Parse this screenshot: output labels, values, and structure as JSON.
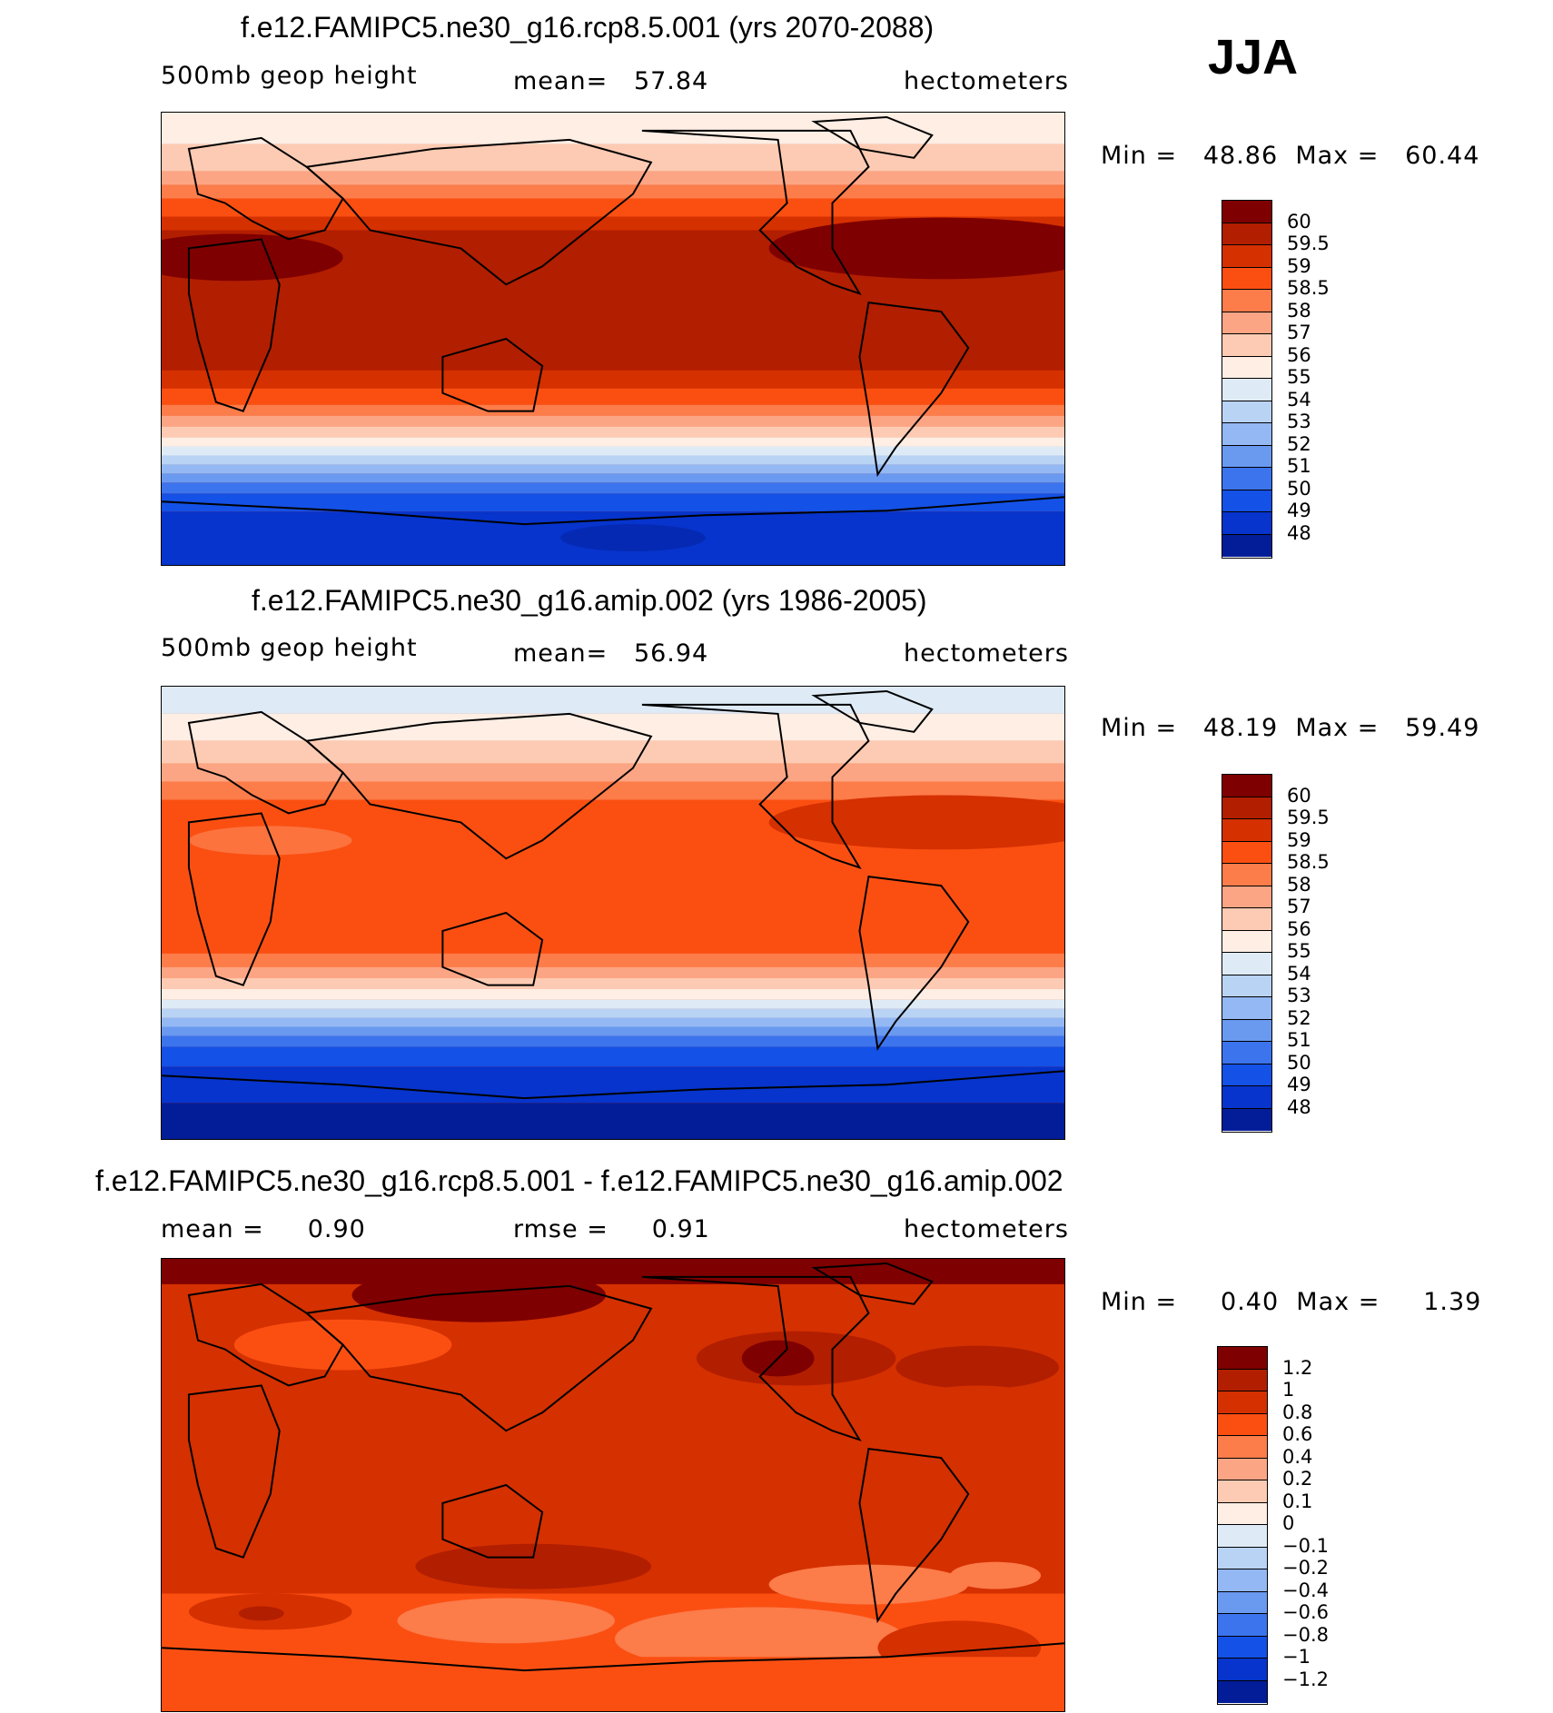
{
  "season": "JJA",
  "panels": [
    {
      "title": "f.e12.FAMIPC5.ne30_g16.rcp8.5.001 (yrs 2070-2088)",
      "left_label": "500mb geop height",
      "center_label": "mean=   57.84",
      "right_label": "hectometers",
      "minmax": "Min =   48.86  Max =   60.44"
    },
    {
      "title": "f.e12.FAMIPC5.ne30_g16.amip.002 (yrs 1986-2005)",
      "left_label": "500mb geop height",
      "center_label": "mean=   56.94",
      "right_label": "hectometers",
      "minmax": "Min =   48.19  Max =   59.49"
    },
    {
      "title": "f.e12.FAMIPC5.ne30_g16.rcp8.5.001 - f.e12.FAMIPC5.ne30_g16.amip.002",
      "left_label": "mean =     0.90",
      "center_label": "rmse =     0.91",
      "right_label": "hectometers",
      "minmax": "Min =     0.40  Max =     1.39"
    }
  ],
  "legends": {
    "field": {
      "labels": [
        "60",
        "59.5",
        "59",
        "58.5",
        "58",
        "57",
        "56",
        "55",
        "54",
        "53",
        "52",
        "51",
        "50",
        "49",
        "48"
      ],
      "colors": [
        "#7f0000",
        "#b21e00",
        "#d53000",
        "#fb4f12",
        "#fc7c4a",
        "#fca584",
        "#fdcbb3",
        "#feeee4",
        "#deebf7",
        "#b9d3f5",
        "#93b8f3",
        "#6a99f0",
        "#3c74ee",
        "#1451e6",
        "#0634cc",
        "#031d99"
      ]
    },
    "diff": {
      "labels": [
        "1.2",
        "1",
        "0.8",
        "0.6",
        "0.4",
        "0.2",
        "0.1",
        "0",
        "−0.1",
        "−0.2",
        "−0.4",
        "−0.6",
        "−0.8",
        "−1",
        "−1.2"
      ],
      "colors": [
        "#7f0000",
        "#b21e00",
        "#d53000",
        "#fb4f12",
        "#fc7c4a",
        "#fca584",
        "#fdcbb3",
        "#feeee4",
        "#deebf7",
        "#b9d3f5",
        "#93b8f3",
        "#6a99f0",
        "#3c74ee",
        "#1451e6",
        "#0634cc",
        "#031d99"
      ]
    }
  }
}
